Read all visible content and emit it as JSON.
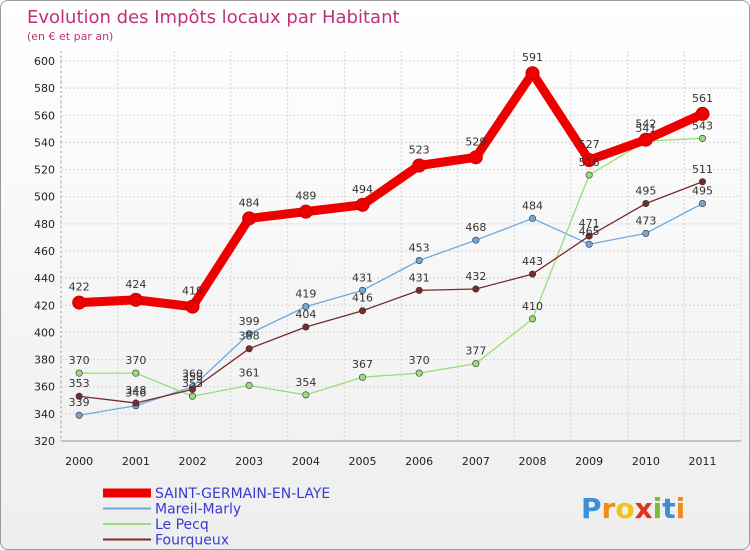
{
  "chart_data": {
    "type": "line",
    "title": "Evolution des Impôts locaux par Habitant",
    "subtitle": "(en € et par an)",
    "x": [
      "2000",
      "2001",
      "2002",
      "2003",
      "2004",
      "2005",
      "2006",
      "2007",
      "2008",
      "2009",
      "2010",
      "2011"
    ],
    "ylim": [
      320,
      600
    ],
    "yticks": [
      320,
      340,
      360,
      380,
      400,
      420,
      440,
      460,
      480,
      500,
      520,
      540,
      560,
      580,
      600
    ],
    "grid": true,
    "legend_position": "bottom-left",
    "series": [
      {
        "name": "SAINT-GERMAIN-EN-LAYE",
        "color": "#ee0000",
        "values": [
          422,
          424,
          419,
          484,
          489,
          494,
          523,
          529,
          591,
          527,
          542,
          561
        ]
      },
      {
        "name": "Mareil-Marly",
        "color": "#6fa8dc",
        "values": [
          339,
          346,
          360,
          399,
          419,
          431,
          453,
          468,
          484,
          465,
          473,
          495
        ]
      },
      {
        "name": "Le Pecq",
        "color": "#99dd77",
        "values": [
          370,
          370,
          353,
          361,
          354,
          367,
          370,
          377,
          410,
          516,
          541,
          543
        ]
      },
      {
        "name": "Fourqueux",
        "color": "#7a2a2a",
        "values": [
          353,
          348,
          358,
          388,
          404,
          416,
          431,
          432,
          443,
          471,
          495,
          511
        ]
      }
    ]
  },
  "logo": {
    "letters": [
      "P",
      "r",
      "o",
      "x",
      "i",
      "t",
      "i"
    ],
    "colors": [
      "#3a8fd8",
      "#f08a1c",
      "#f0c419",
      "#e0331f",
      "#7dbb3c",
      "#3a8fd8",
      "#f08a1c"
    ]
  }
}
